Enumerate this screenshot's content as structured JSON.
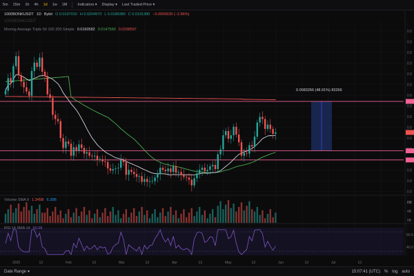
{
  "toolbar": {
    "intervals": [
      "5m",
      "15m",
      "1h",
      "4h",
      "1d",
      "1w",
      "1M"
    ],
    "active_interval": "1d",
    "menus": [
      "Indicators",
      "Display",
      "Last Traded Price"
    ]
  },
  "symbol_legend": {
    "symbol": "1000BONKUSDT",
    "interval": "1D",
    "exchange": "Bybit",
    "open": "O 0.0197010",
    "high": "H 0.0204570",
    "low": "L 0.0189380",
    "close": "C 0.0191380",
    "change": "−0.0005630 (−2.86%)"
  },
  "watermark": "1000BONKUSDT",
  "ma_legend": {
    "title": "Moving Average Triple 50 100 200 Simple",
    "ma50": "0.0160582",
    "ma100": "0.0147560",
    "ma200": "0.0238597"
  },
  "volume_legend": {
    "title": "Volume SMA 9",
    "value_a": "1.345B",
    "value_b": "6.39B"
  },
  "rsi_legend": {
    "title": "RSI 14 SMA 14",
    "value": "50.08"
  },
  "measure": {
    "text": "0.0083266 (48.91%) 83266"
  },
  "x_axis": {
    "labels": [
      "2025",
      "13",
      "Feb",
      "13",
      "Mar",
      "13",
      "Apr",
      "13",
      "May",
      "13",
      "Jun",
      "13",
      "Jul",
      "13"
    ]
  },
  "price_axis": {
    "labels": [
      "0.0",
      "0.0",
      "0.0",
      "0.0",
      "0.0",
      "0.0",
      "0.0",
      "0.0",
      "0.0",
      "0.0",
      "0.0",
      "0.0",
      "0.0",
      "0.0",
      "0.0",
      "0.0",
      "0.0"
    ]
  },
  "volume_axis": {
    "labels": [
      "8B",
      "4B",
      "0B"
    ]
  },
  "rsi_axis": {
    "labels": [
      "60.0",
      "40.0"
    ]
  },
  "bottom": {
    "date_range": "Date Range",
    "time": "15:07:41 (UTC)",
    "mode": "%",
    "log": "log",
    "auto": "auto"
  },
  "colors": {
    "up": "#26a69a",
    "down": "#ef5350",
    "ma50": "#d1d4dc",
    "ma100": "#4caf50",
    "ma200": "#ef5350",
    "hline": "#f06292",
    "accent": "#f0b90b"
  },
  "chart_data": {
    "type": "candlestick",
    "close": [
      0.025,
      0.0268,
      0.0262,
      0.0285,
      0.0299,
      0.0272,
      0.0263,
      0.0255,
      0.0249,
      0.0243,
      0.0278,
      0.029,
      0.0284,
      0.0297,
      0.0277,
      0.0271,
      0.0245,
      0.024,
      0.0216,
      0.021,
      0.0207,
      0.0183,
      0.0169,
      0.0178,
      0.0175,
      0.0158,
      0.017,
      0.0165,
      0.0174,
      0.0169,
      0.0161,
      0.0163,
      0.0158,
      0.0157,
      0.0158,
      0.0152,
      0.0153,
      0.015,
      0.0149,
      0.014,
      0.0137,
      0.0139,
      0.014,
      0.0141,
      0.0152,
      0.0149,
      0.0131,
      0.0138,
      0.0135,
      0.0132,
      0.0128,
      0.0129,
      0.0121,
      0.0125,
      0.0121,
      0.0122,
      0.0122,
      0.0127,
      0.0132,
      0.0141,
      0.0138,
      0.0136,
      0.014,
      0.0135,
      0.0143,
      0.0134,
      0.0135,
      0.0131,
      0.0128,
      0.0127,
      0.0124,
      0.0116,
      0.0126,
      0.0133,
      0.0138,
      0.0141,
      0.0136,
      0.0138,
      0.0143,
      0.0145,
      0.0139,
      0.016,
      0.0167,
      0.0187,
      0.0193,
      0.0182,
      0.0187,
      0.0199,
      0.0188,
      0.0177,
      0.0158,
      0.0162,
      0.0161,
      0.0173,
      0.0171,
      0.0185,
      0.0205,
      0.0213,
      0.021,
      0.0196,
      0.0202,
      0.0196,
      0.0189,
      0.0191
    ],
    "hlines": [
      0.0235,
      0.0165,
      0.0152
    ],
    "volume_max": 10,
    "rsi_range": [
      0,
      100
    ]
  }
}
